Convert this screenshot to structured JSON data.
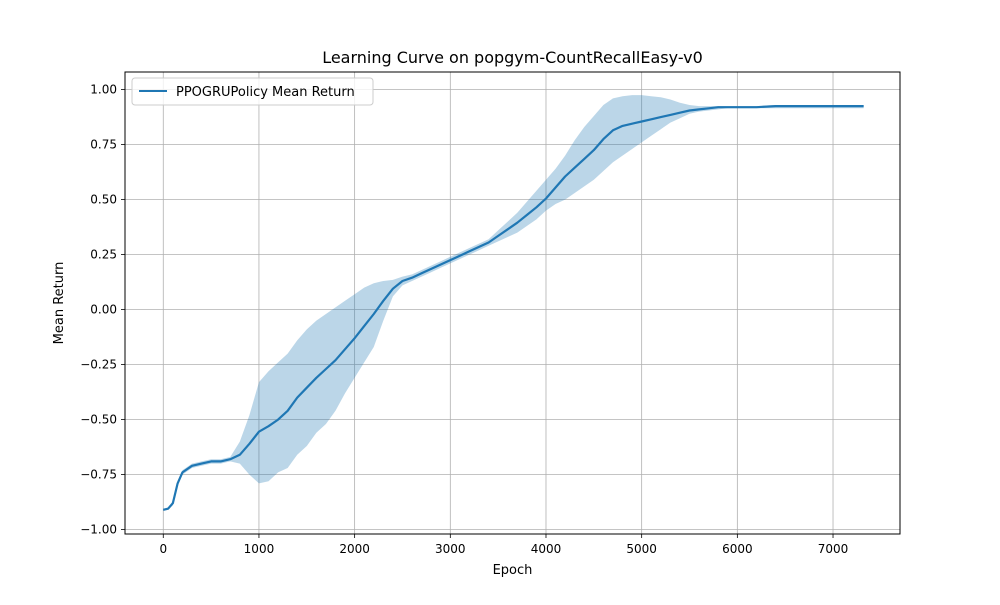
{
  "chart_data": {
    "type": "line",
    "title": "Learning Curve on popgym-CountRecallEasy-v0",
    "xlabel": "Epoch",
    "ylabel": "Mean Return",
    "xlim": [
      -400,
      7700
    ],
    "ylim": [
      -1.02,
      1.08
    ],
    "x_ticks": [
      0,
      1000,
      2000,
      3000,
      4000,
      5000,
      6000,
      7000
    ],
    "x_tick_labels": [
      "0",
      "1000",
      "2000",
      "3000",
      "4000",
      "5000",
      "6000",
      "7000"
    ],
    "y_ticks": [
      -1.0,
      -0.75,
      -0.5,
      -0.25,
      0.0,
      0.25,
      0.5,
      0.75,
      1.0
    ],
    "y_tick_labels": [
      "−1.00",
      "−0.75",
      "−0.50",
      "−0.25",
      "0.00",
      "0.25",
      "0.50",
      "0.75",
      "1.00"
    ],
    "grid": true,
    "legend_position": "top-left",
    "series": [
      {
        "name": "PPOGRUPolicy Mean Return",
        "color": "#1f77b4",
        "band_color": "#1f77b4",
        "x": [
          0,
          50,
          100,
          150,
          200,
          300,
          400,
          500,
          600,
          700,
          800,
          900,
          1000,
          1100,
          1200,
          1300,
          1400,
          1500,
          1600,
          1700,
          1800,
          1900,
          2000,
          2100,
          2200,
          2300,
          2400,
          2500,
          2600,
          2700,
          2800,
          2900,
          3000,
          3100,
          3200,
          3300,
          3400,
          3500,
          3600,
          3700,
          3800,
          3900,
          4000,
          4100,
          4200,
          4300,
          4400,
          4500,
          4600,
          4700,
          4800,
          4900,
          5000,
          5100,
          5200,
          5300,
          5400,
          5500,
          5600,
          5700,
          5800,
          5900,
          6000,
          6200,
          6400,
          6600,
          6800,
          7000,
          7200,
          7320
        ],
        "mean": [
          -0.91,
          -0.905,
          -0.88,
          -0.79,
          -0.74,
          -0.71,
          -0.7,
          -0.69,
          -0.69,
          -0.68,
          -0.66,
          -0.61,
          -0.555,
          -0.53,
          -0.5,
          -0.46,
          -0.4,
          -0.355,
          -0.31,
          -0.27,
          -0.23,
          -0.18,
          -0.13,
          -0.075,
          -0.02,
          0.04,
          0.095,
          0.13,
          0.145,
          0.165,
          0.185,
          0.205,
          0.225,
          0.245,
          0.265,
          0.285,
          0.305,
          0.335,
          0.365,
          0.395,
          0.43,
          0.465,
          0.505,
          0.555,
          0.605,
          0.645,
          0.685,
          0.725,
          0.775,
          0.815,
          0.835,
          0.845,
          0.855,
          0.865,
          0.875,
          0.885,
          0.895,
          0.905,
          0.91,
          0.915,
          0.92,
          0.92,
          0.92,
          0.92,
          0.925,
          0.925,
          0.925,
          0.925,
          0.925,
          0.925
        ],
        "lower": [
          -0.915,
          -0.91,
          -0.89,
          -0.8,
          -0.75,
          -0.72,
          -0.71,
          -0.7,
          -0.7,
          -0.69,
          -0.7,
          -0.75,
          -0.79,
          -0.78,
          -0.74,
          -0.72,
          -0.66,
          -0.62,
          -0.56,
          -0.52,
          -0.46,
          -0.38,
          -0.31,
          -0.24,
          -0.17,
          -0.05,
          0.06,
          0.11,
          0.13,
          0.15,
          0.17,
          0.19,
          0.21,
          0.23,
          0.25,
          0.27,
          0.29,
          0.31,
          0.33,
          0.35,
          0.38,
          0.41,
          0.45,
          0.48,
          0.5,
          0.53,
          0.56,
          0.59,
          0.63,
          0.67,
          0.7,
          0.73,
          0.76,
          0.79,
          0.82,
          0.85,
          0.87,
          0.89,
          0.9,
          0.905,
          0.91,
          0.915,
          0.915,
          0.915,
          0.915,
          0.915,
          0.915,
          0.915,
          0.915,
          0.915
        ],
        "upper": [
          -0.905,
          -0.9,
          -0.87,
          -0.78,
          -0.73,
          -0.7,
          -0.69,
          -0.68,
          -0.68,
          -0.67,
          -0.6,
          -0.48,
          -0.33,
          -0.28,
          -0.24,
          -0.2,
          -0.14,
          -0.09,
          -0.05,
          -0.02,
          0.01,
          0.04,
          0.07,
          0.1,
          0.12,
          0.13,
          0.135,
          0.15,
          0.16,
          0.18,
          0.2,
          0.22,
          0.24,
          0.26,
          0.28,
          0.3,
          0.32,
          0.36,
          0.4,
          0.44,
          0.49,
          0.54,
          0.59,
          0.64,
          0.7,
          0.77,
          0.83,
          0.88,
          0.93,
          0.96,
          0.97,
          0.975,
          0.975,
          0.97,
          0.965,
          0.955,
          0.94,
          0.93,
          0.925,
          0.925,
          0.925,
          0.925,
          0.925,
          0.925,
          0.93,
          0.93,
          0.93,
          0.93,
          0.93,
          0.93
        ]
      }
    ]
  }
}
